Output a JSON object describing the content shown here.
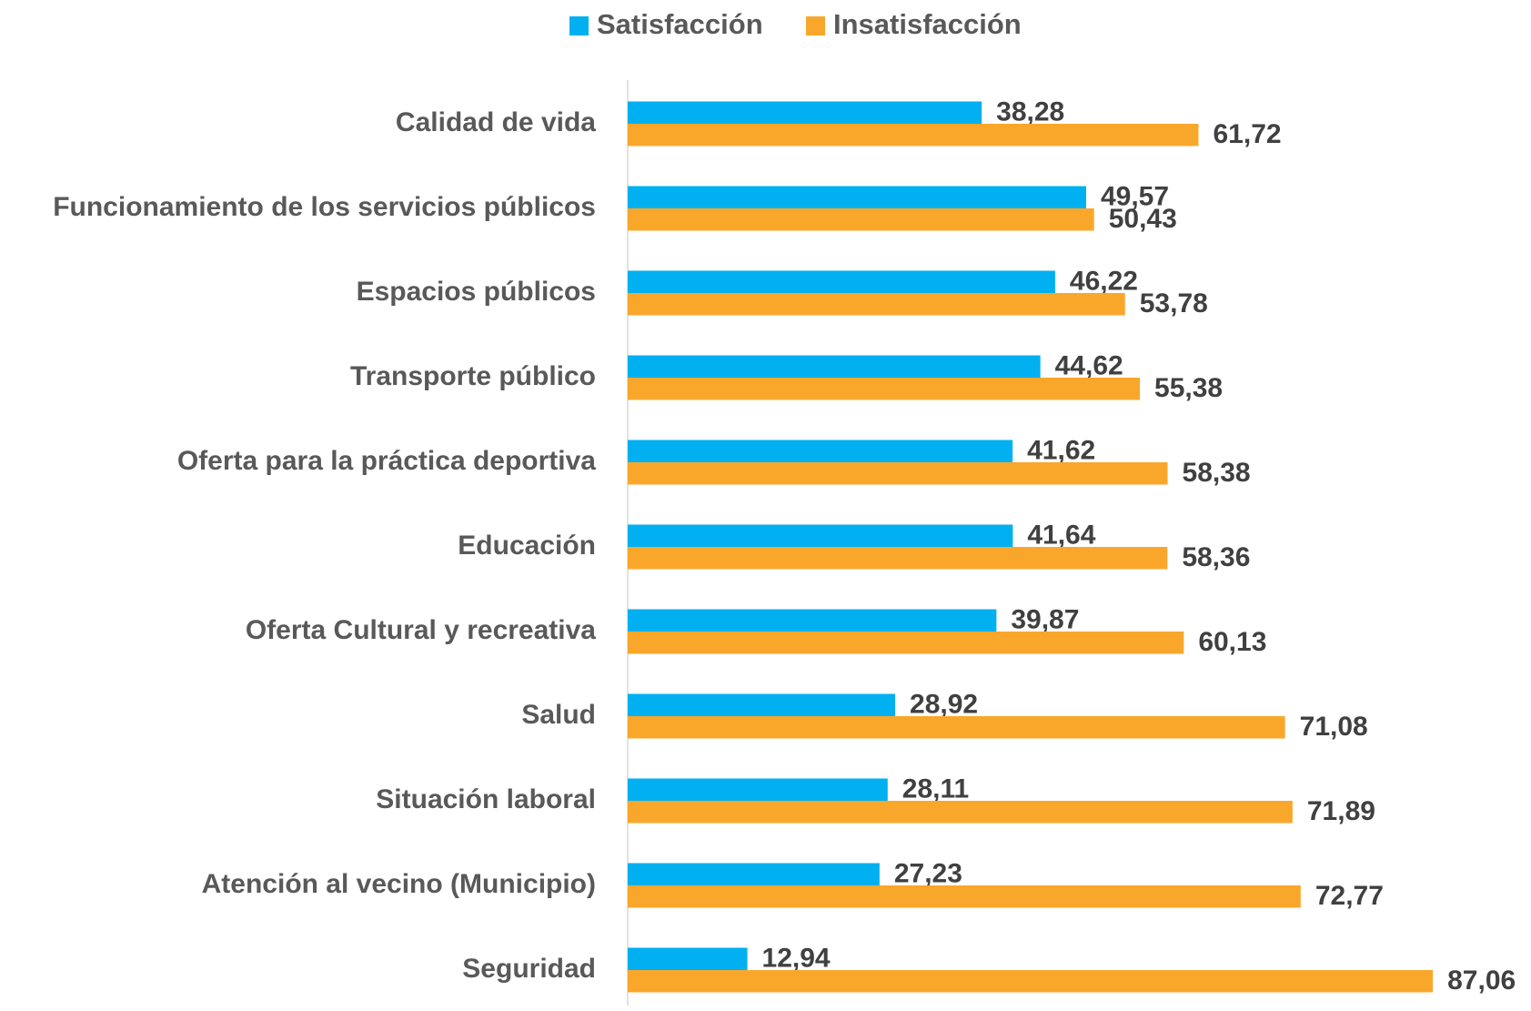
{
  "chart_data": {
    "type": "barh",
    "categories": [
      "Calidad de vida",
      "Funcionamiento de los servicios públicos",
      "Espacios públicos",
      "Transporte público",
      "Oferta para la práctica deportiva",
      "Educación",
      "Oferta Cultural y recreativa",
      "Salud",
      "Situación laboral",
      "Atención al vecino (Municipio)",
      "Seguridad"
    ],
    "series": [
      {
        "name": "Satisfacción",
        "color": "#00b0f0",
        "values": [
          38.28,
          49.57,
          46.22,
          44.62,
          41.62,
          41.64,
          39.87,
          28.92,
          28.11,
          27.23,
          12.94
        ],
        "value_labels": [
          "38,28",
          "49,57",
          "46,22",
          "44,62",
          "41,62",
          "41,64",
          "39,87",
          "28,92",
          "28,11",
          "27,23",
          "12,94"
        ]
      },
      {
        "name": "Insatisfacción",
        "color": "#f9a72b",
        "values": [
          61.72,
          50.43,
          53.78,
          55.38,
          58.38,
          58.36,
          60.13,
          71.08,
          71.89,
          72.77,
          87.06
        ],
        "value_labels": [
          "61,72",
          "50,43",
          "53,78",
          "55,38",
          "58,38",
          "58,36",
          "60,13",
          "71,08",
          "71,89",
          "72,77",
          "87,06"
        ]
      }
    ],
    "xlim": [
      0,
      90
    ],
    "legend": "top"
  }
}
